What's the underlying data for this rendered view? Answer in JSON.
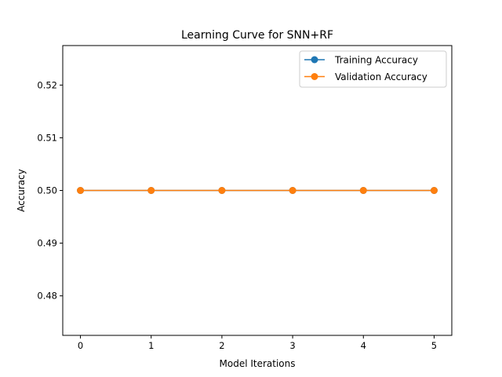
{
  "chart_data": {
    "type": "line",
    "title": "Learning Curve for SNN+RF",
    "xlabel": "Model Iterations",
    "ylabel": "Accuracy",
    "x": [
      0,
      1,
      2,
      3,
      4,
      5
    ],
    "xticks": [
      0,
      1,
      2,
      3,
      4,
      5
    ],
    "yticks": [
      0.48,
      0.49,
      0.5,
      0.51,
      0.52
    ],
    "ytick_labels": [
      "0.48",
      "0.49",
      "0.50",
      "0.51",
      "0.52"
    ],
    "xlim": [
      -0.25,
      5.25
    ],
    "ylim": [
      0.4725,
      0.5275
    ],
    "grid": false,
    "legend_position": "top-right",
    "series": [
      {
        "name": "Training Accuracy",
        "values": [
          0.5,
          0.5,
          0.5,
          0.5,
          0.5,
          0.5
        ],
        "color": "#1f77b4",
        "marker": "circle"
      },
      {
        "name": "Validation Accuracy",
        "values": [
          0.5,
          0.5,
          0.5,
          0.5,
          0.5,
          0.5
        ],
        "color": "#ff7f0e",
        "marker": "circle"
      }
    ]
  }
}
